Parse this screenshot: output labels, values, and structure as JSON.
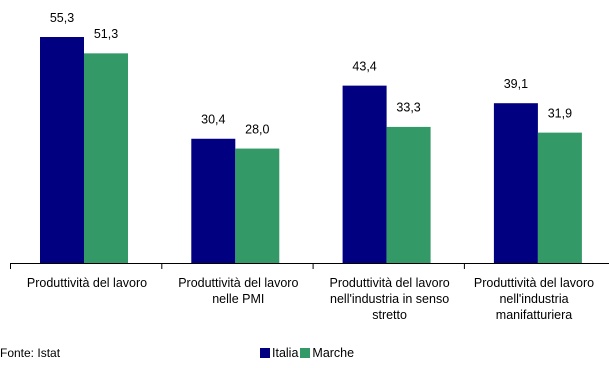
{
  "chart_data": {
    "type": "bar",
    "categories": [
      "Produttività del lavoro",
      "Produttività del lavoro\nnelle PMI",
      "Produttività del lavoro\nnell'industria in senso\nstretto",
      "Produttività del lavoro\nnell'industria\nmanifatturiera"
    ],
    "series": [
      {
        "name": "Italia",
        "values": [
          55.3,
          30.4,
          43.4,
          39.1
        ],
        "labels": [
          "55,3",
          "30,4",
          "43,4",
          "39,1"
        ],
        "color": "#000080"
      },
      {
        "name": "Marche",
        "values": [
          51.3,
          28.0,
          33.3,
          31.9
        ],
        "labels": [
          "51,3",
          "28,0",
          "33,3",
          "31,9"
        ],
        "color": "#339966"
      }
    ],
    "ylim": [
      0,
      60
    ],
    "grid": false,
    "legend_position": "bottom"
  },
  "source": "Fonte: Istat"
}
